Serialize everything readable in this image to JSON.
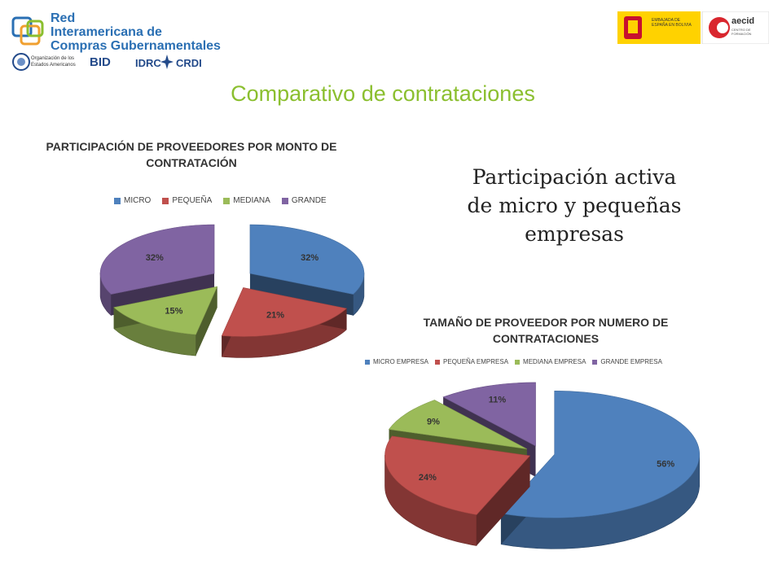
{
  "header": {
    "logo_lines": [
      "Red",
      "Interamericana de",
      "Compras Gubernamentales"
    ],
    "sub_logos": {
      "oas": "Organización de los Estados Americanos",
      "bid": "BID",
      "idrc": "IDRC",
      "crdi": "CRDI"
    },
    "right_logos": {
      "embassy": "EMBAJADA DE ESPAÑA EN BOLIVIA",
      "aecid": "aecid",
      "aecid_sub": "CENTRO DE FORMACIÓN"
    }
  },
  "slide_title": "Comparativo  de contrataciones",
  "caption_lines": [
    "Participación activa",
    "de micro y pequeñas",
    "empresas"
  ],
  "colors": {
    "micro": "#4f81bd",
    "pequena": "#c0504d",
    "mediana": "#9bbb59",
    "grande": "#8064a2",
    "title_green": "#8bbf2f"
  },
  "chart_data": [
    {
      "type": "pie",
      "title_lines": [
        "PARTICIPACIÓN DE PROVEEDORES POR MONTO DE",
        "CONTRATACIÓN"
      ],
      "legend_position": "top",
      "categories": [
        "MICRO",
        "PEQUEÑA",
        "MEDIANA",
        "GRANDE"
      ],
      "values": [
        32,
        21,
        15,
        32
      ],
      "labels": [
        "32%",
        "21%",
        "15%",
        "32%"
      ]
    },
    {
      "type": "pie",
      "title_lines": [
        "TAMAÑO DE PROVEEDOR POR NUMERO DE",
        "CONTRATACIONES"
      ],
      "legend_position": "top",
      "categories": [
        "MICRO EMPRESA",
        "PEQUEÑA EMPRESA",
        "MEDIANA EMPRESA",
        "GRANDE EMPRESA"
      ],
      "values": [
        56,
        24,
        9,
        11
      ],
      "labels": [
        "56%",
        "24%",
        "9%",
        "11%"
      ]
    }
  ]
}
